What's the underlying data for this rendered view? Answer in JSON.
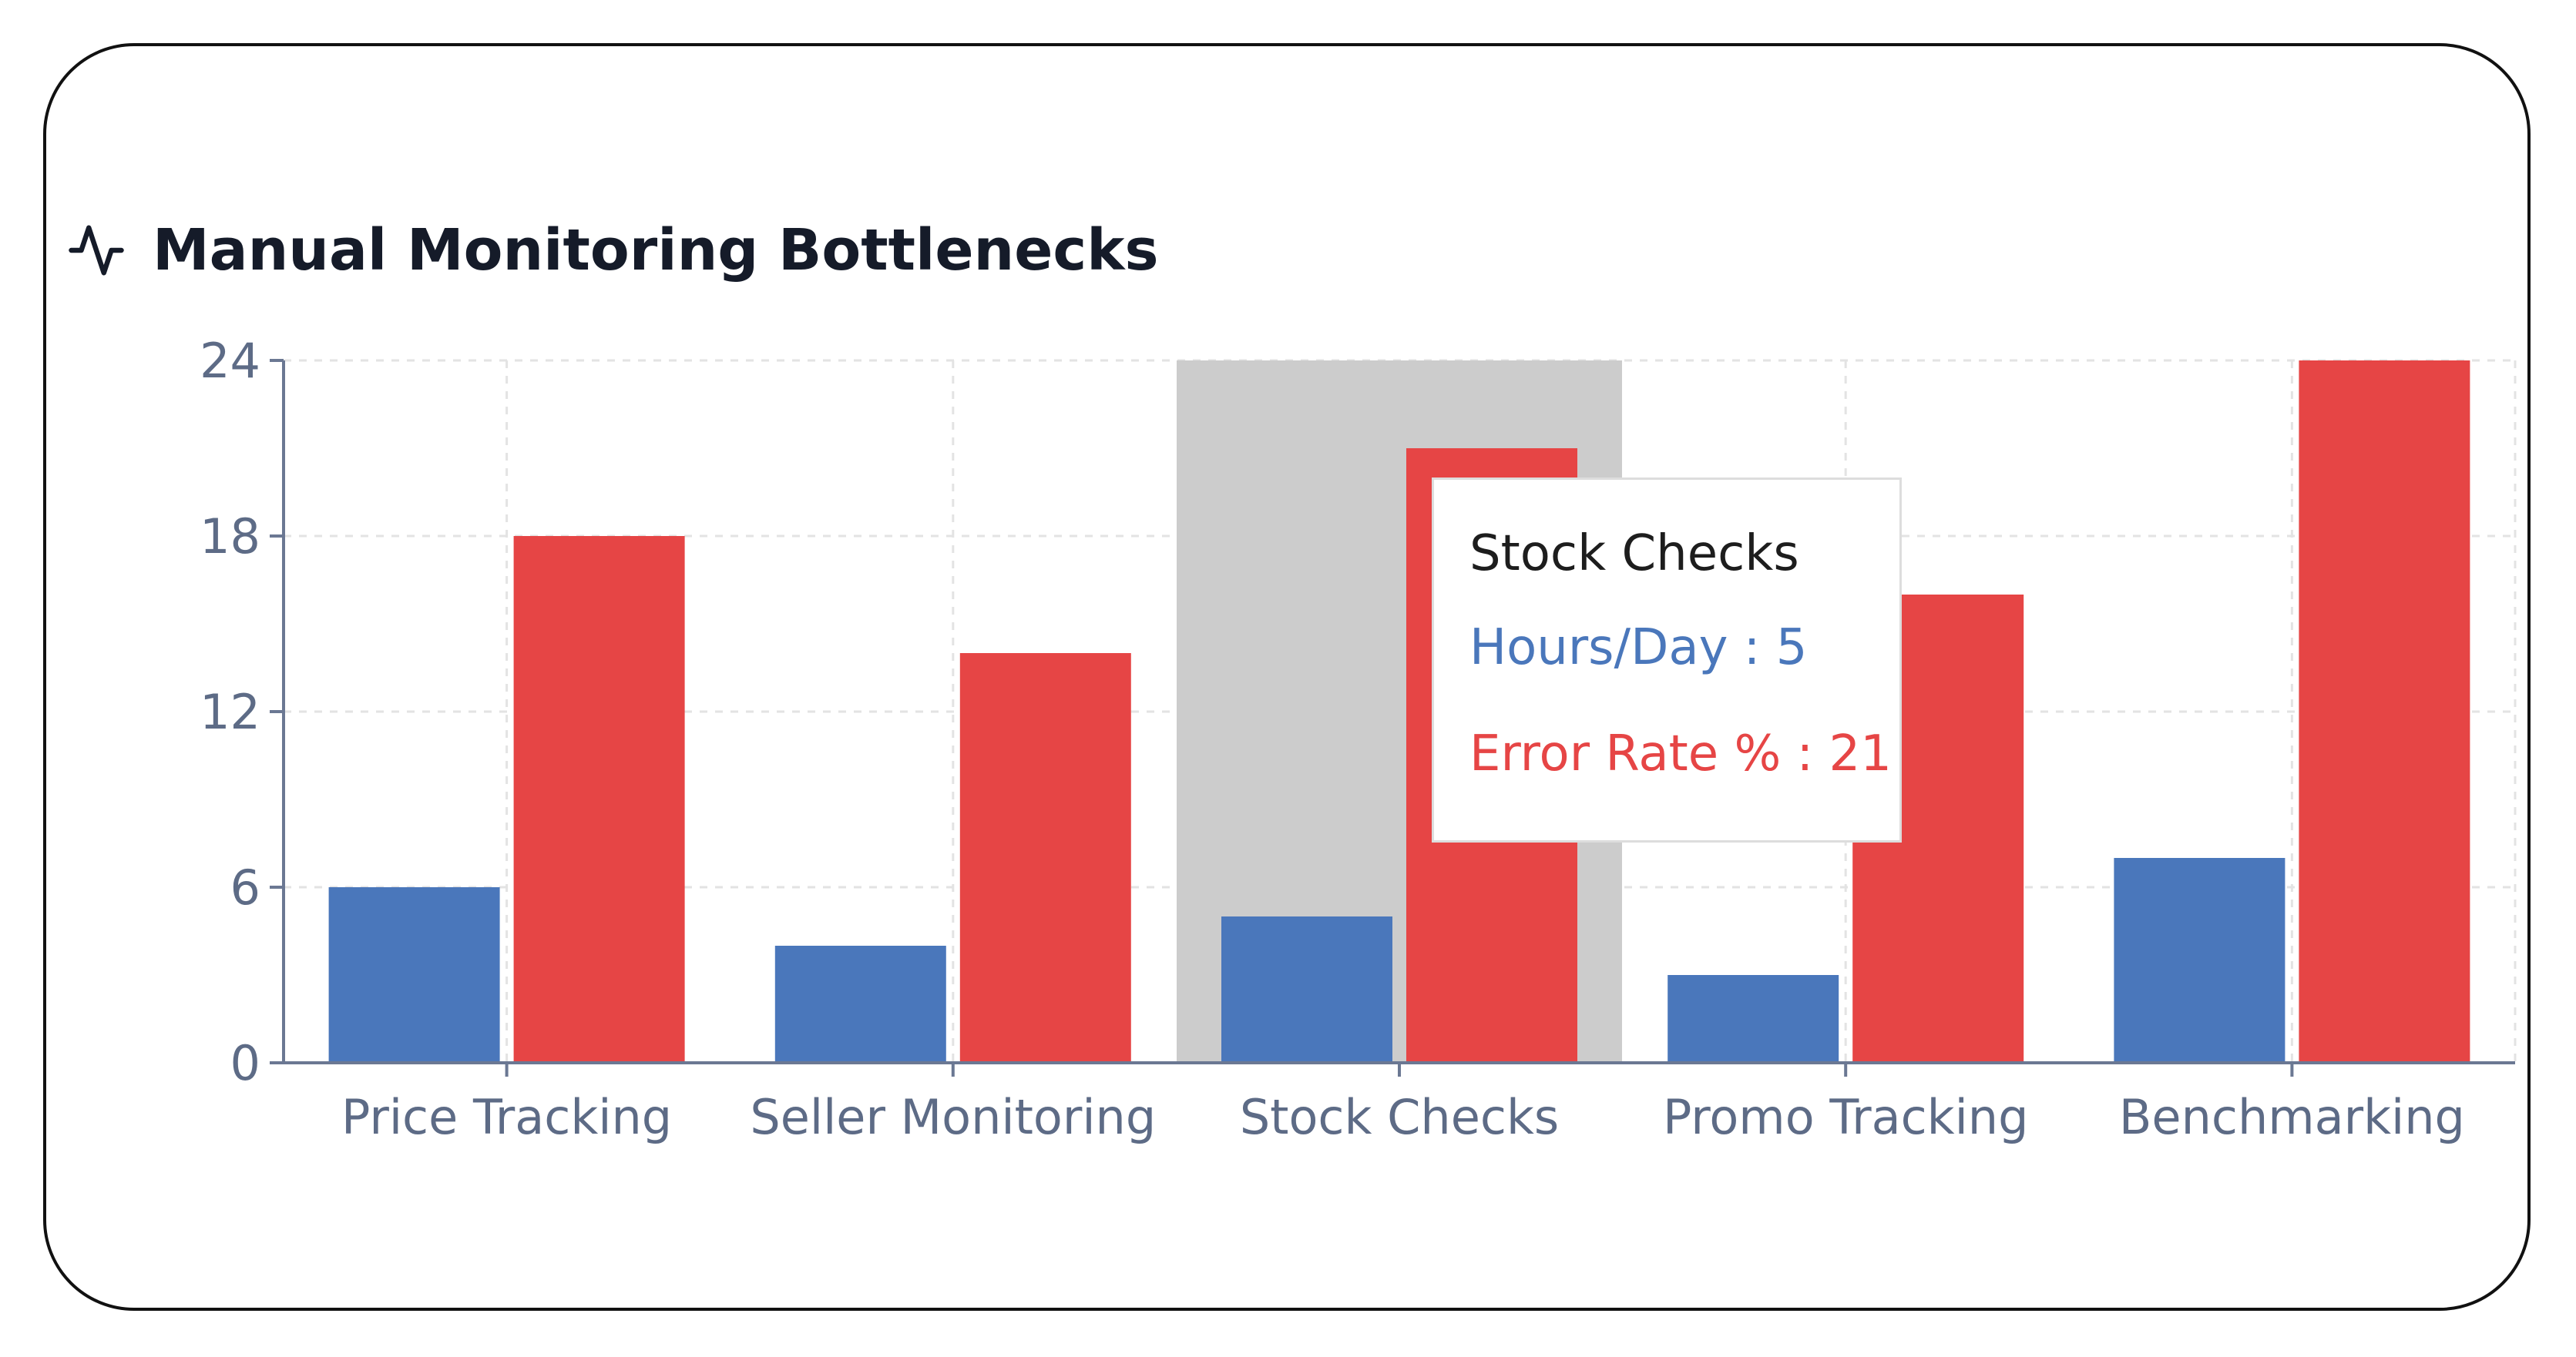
{
  "title": "Manual Monitoring Bottlenecks",
  "icon": "activity-icon",
  "chart_data": {
    "type": "bar",
    "categories": [
      "Price Tracking",
      "Seller Monitoring",
      "Stock Checks",
      "Promo Tracking",
      "Benchmarking"
    ],
    "series": [
      {
        "name": "Hours/Day",
        "values": [
          6,
          4,
          5,
          3,
          7
        ],
        "color": "#4a77bb"
      },
      {
        "name": "Error Rate %",
        "values": [
          18,
          14,
          21,
          16,
          24
        ],
        "color": "#e64545"
      }
    ],
    "ylim": [
      0,
      24
    ],
    "yticks": [
      "0",
      "6",
      "12",
      "18",
      "24"
    ],
    "grid": true,
    "highlighted_category": "Stock Checks",
    "highlight_color": "#cccccc"
  },
  "tooltip": {
    "title": "Stock Checks",
    "hours_label": "Hours/Day",
    "hours_value": "5",
    "error_label": "Error Rate %",
    "error_value": "21"
  }
}
